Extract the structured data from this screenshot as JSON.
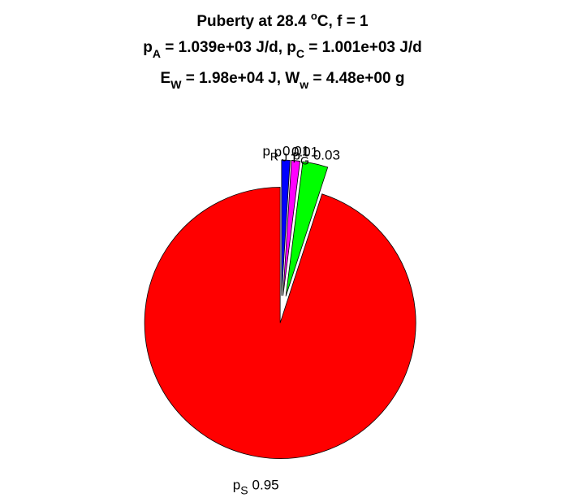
{
  "chart_data": {
    "type": "pie",
    "title_lines": [
      [
        "Puberty at 28.4 ",
        "o",
        "C, f = 1"
      ],
      [
        "p",
        "A",
        " = 1.039e+03 J/d,  p",
        "C",
        " = 1.001e+03 J/d"
      ],
      [
        "E",
        "W",
        " = 1.98e+04 J, W",
        "w",
        " = 4.48e+00 g"
      ]
    ],
    "categories": [
      [
        "p",
        "R"
      ],
      [
        "p",
        "J"
      ],
      [
        "p",
        "G"
      ],
      [
        "p",
        "S"
      ]
    ],
    "values": [
      0.01,
      0.01,
      0.03,
      0.95
    ],
    "colors": [
      "#0000ff",
      "#ff00ff",
      "#00ff00",
      "#ff0000"
    ]
  }
}
